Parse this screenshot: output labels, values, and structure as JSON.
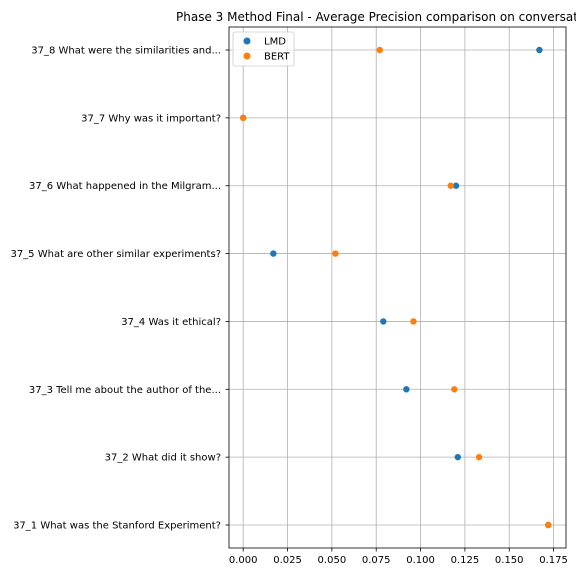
{
  "chart_data": {
    "type": "scatter",
    "title": "Phase 3 Method Final - Average Precision comparison on conversat",
    "xlabel": "",
    "ylabel": "",
    "xlim": [
      -0.008,
      0.182
    ],
    "xticks": [
      "0.000",
      "0.025",
      "0.050",
      "0.075",
      "0.100",
      "0.125",
      "0.150",
      "0.175"
    ],
    "grid": true,
    "legend_position": "top-left",
    "categories": [
      "37_1 What was the Stanford Experiment?",
      "37_2 What did it show?",
      "37_3 Tell me about the author of the...",
      "37_4 Was it ethical?",
      "37_5 What are other similar experiments?",
      "37_6 What happened in the Milgram...",
      "37_7 Why was it important?",
      "37_8 What were the similarities and..."
    ],
    "series": [
      {
        "name": "LMD",
        "color": "#1f77b4",
        "values": [
          0.172,
          0.121,
          0.092,
          0.079,
          0.017,
          0.12,
          0.0,
          0.167
        ]
      },
      {
        "name": "BERT",
        "color": "#ff7f0e",
        "values": [
          0.172,
          0.133,
          0.119,
          0.096,
          0.052,
          0.117,
          0.0,
          0.077
        ]
      }
    ]
  }
}
